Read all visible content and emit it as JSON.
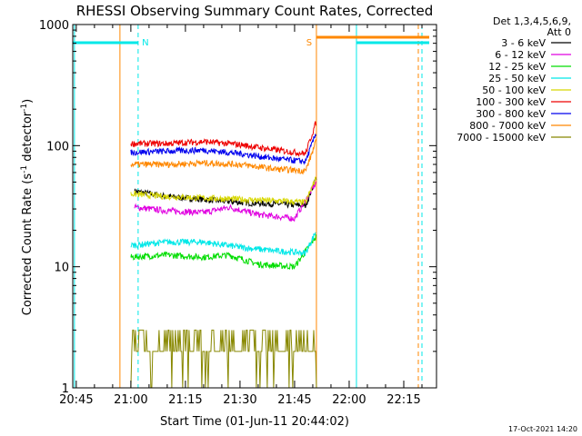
{
  "chart_data": {
    "type": "line",
    "title": "RHESSI Observing Summary Count Rates, Corrected",
    "xlabel": "Start Time (01-Jun-11 20:44:02)",
    "ylabel": "Corrected Count Rate (s",
    "ylabel_sup1": "-1",
    "ylabel_mid": " detector",
    "ylabel_sup2": "-1",
    "ylabel_end": ")",
    "footer": "17-Oct-2021 14:20",
    "x_scale": "time",
    "y_scale": "log",
    "xlim": [
      "20:44:02",
      "22:24:00"
    ],
    "ylim": [
      1,
      1000
    ],
    "x_ticks": [
      "20:45",
      "21:00",
      "21:15",
      "21:30",
      "21:45",
      "22:00",
      "22:15"
    ],
    "y_ticks": [
      "1",
      "10",
      "100",
      "1000"
    ],
    "legend_placement": "right",
    "legend_header": [
      "Det 1,3,4,5,6,9,",
      "Att 0"
    ],
    "series": [
      {
        "name": "3 - 6 keV",
        "color": "#000000",
        "x": [
          "21:01",
          "21:10",
          "21:20",
          "21:30",
          "21:40",
          "21:48",
          "21:51"
        ],
        "values": [
          42,
          38,
          36,
          34,
          33,
          32,
          55
        ]
      },
      {
        "name": "6 - 12 keV",
        "color": "#e000e0",
        "x": [
          "21:01",
          "21:10",
          "21:20",
          "21:27",
          "21:35",
          "21:45",
          "21:51"
        ],
        "values": [
          31,
          29,
          28,
          31,
          27,
          25,
          50
        ]
      },
      {
        "name": "12 - 25 keV",
        "color": "#00dd00",
        "x": [
          "21:00",
          "21:10",
          "21:20",
          "21:27",
          "21:35",
          "21:45",
          "21:51"
        ],
        "values": [
          12,
          12.5,
          12,
          12.5,
          10.5,
          10,
          18
        ]
      },
      {
        "name": "25 - 50 keV",
        "color": "#00e8e8",
        "x": [
          "21:00",
          "21:10",
          "21:20",
          "21:30",
          "21:40",
          "21:48",
          "21:51"
        ],
        "values": [
          15,
          16,
          16,
          14.5,
          13.5,
          13,
          20
        ]
      },
      {
        "name": "50 - 100 keV",
        "color": "#d8d800",
        "x": [
          "21:00",
          "21:10",
          "21:20",
          "21:30",
          "21:40",
          "21:48",
          "21:51"
        ],
        "values": [
          40,
          38,
          37,
          36,
          35,
          34,
          55
        ]
      },
      {
        "name": "100 - 300 keV",
        "color": "#ee0000",
        "x": [
          "21:00",
          "21:10",
          "21:20",
          "21:30",
          "21:40",
          "21:48",
          "21:51"
        ],
        "values": [
          104,
          104,
          108,
          102,
          92,
          86,
          160
        ]
      },
      {
        "name": "300 - 800 keV",
        "color": "#0000ee",
        "x": [
          "21:00",
          "21:10",
          "21:20",
          "21:30",
          "21:40",
          "21:48",
          "21:51"
        ],
        "values": [
          88,
          90,
          92,
          86,
          78,
          74,
          130
        ]
      },
      {
        "name": "800 - 7000 keV",
        "color": "#ff8800",
        "x": [
          "21:00",
          "21:10",
          "21:20",
          "21:30",
          "21:40",
          "21:48",
          "21:51"
        ],
        "values": [
          70,
          70,
          72,
          70,
          64,
          62,
          110
        ]
      },
      {
        "name": "7000 - 15000 keV",
        "color": "#888800",
        "x": [
          "21:00",
          "21:51"
        ],
        "values": [
          2,
          2
        ]
      }
    ],
    "annotations": [
      {
        "label": "N",
        "color": "#00e8e8",
        "x": "21:02"
      },
      {
        "label": "S",
        "color": "#ff8800",
        "x": "21:51"
      }
    ]
  }
}
